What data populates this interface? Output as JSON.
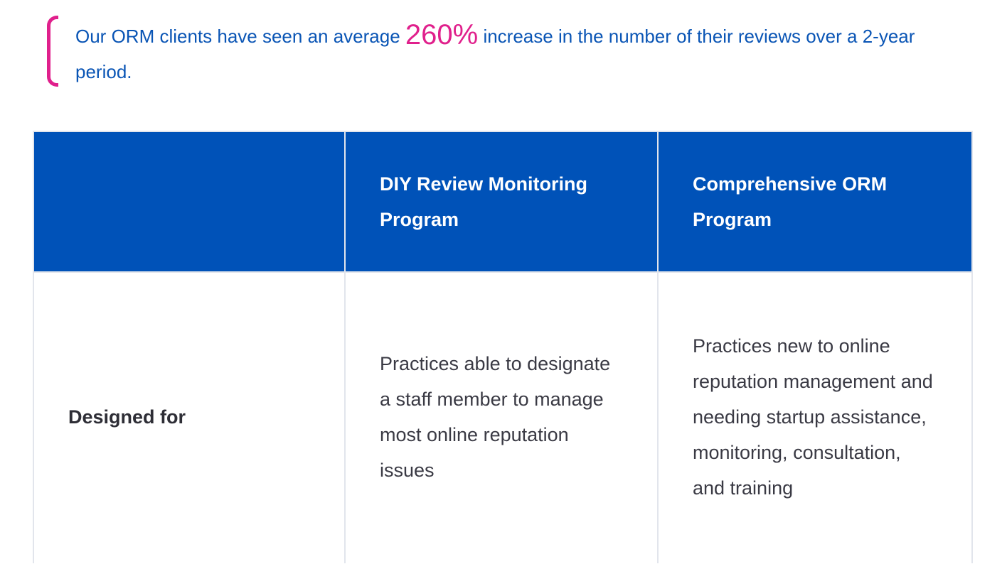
{
  "callout": {
    "text_before": "Our ORM clients have seen an average ",
    "stat": "260%",
    "text_after": " increase in the number of their reviews over a 2-year period."
  },
  "comparison_table": {
    "headers": [
      "",
      "DIY Review Monitoring Program",
      "Comprehensive ORM Program"
    ],
    "rows": [
      {
        "label": "Designed for",
        "diy": "Practices able to designate a staff member to manage most online reputation issues",
        "comprehensive": "Practices new to online reputation management and needing startup assistance, monitoring, consultation, and training"
      }
    ]
  },
  "colors": {
    "accent_magenta": "#e0208c",
    "header_blue": "#0052b8",
    "callout_text_blue": "#0a55b5",
    "body_text": "#3a3a44",
    "border": "#e2e5ec"
  }
}
